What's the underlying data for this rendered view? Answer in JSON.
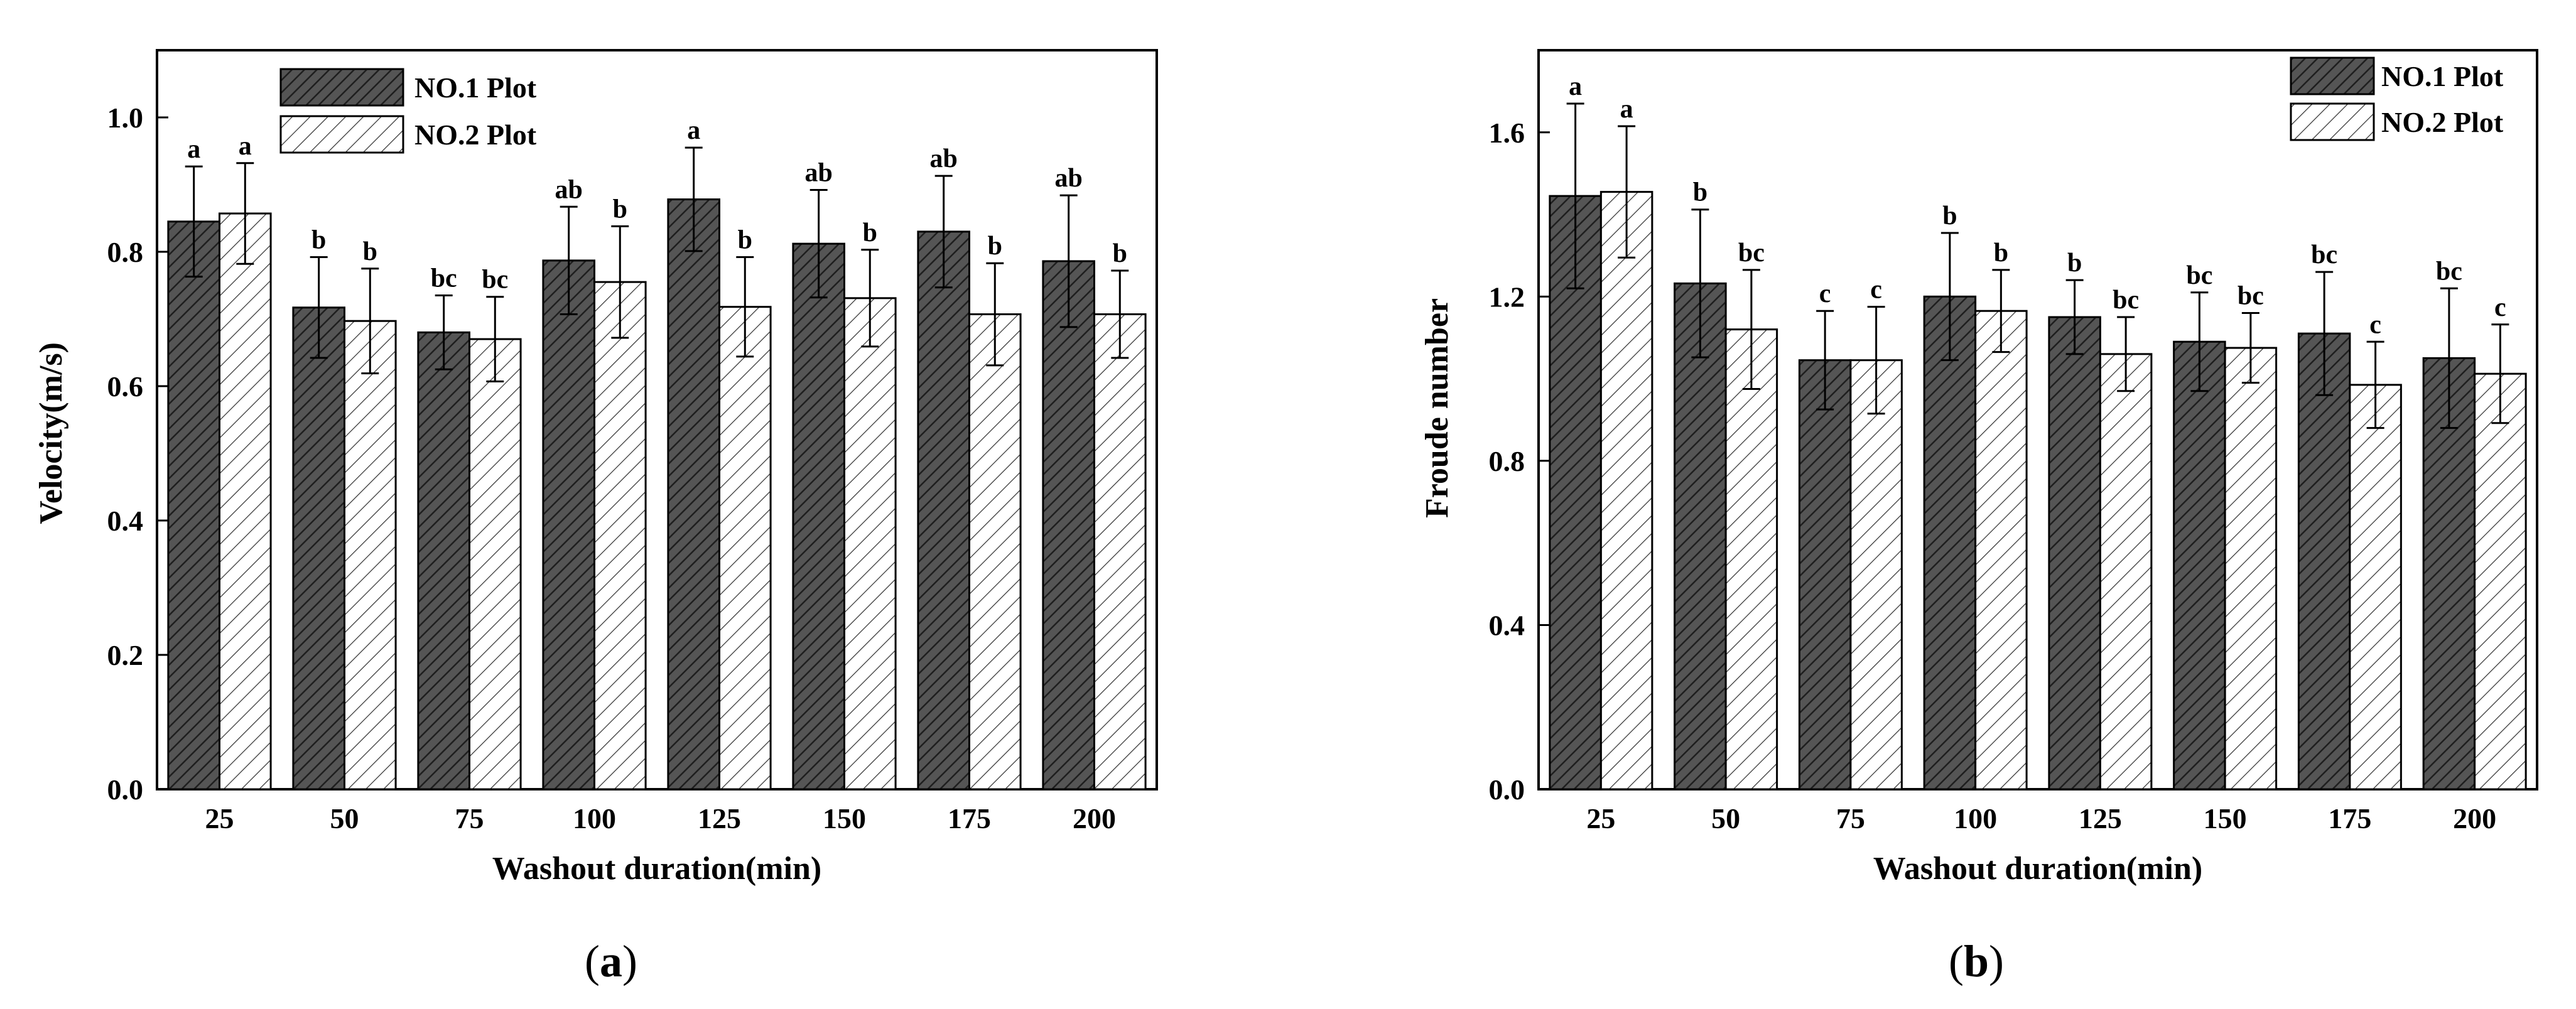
{
  "colors": {
    "plot1_fill": "#555555",
    "plot2_fill": "#ffffff",
    "axis": "#000000"
  },
  "chart_data": [
    {
      "type": "bar",
      "panel_label": "(a)",
      "panel_letter": "a",
      "xlabel": "Washout duration(min)",
      "ylabel": "Velocity(m/s)",
      "ylim": [
        0,
        1.1
      ],
      "yticks": [
        0.0,
        0.2,
        0.4,
        0.6,
        0.8,
        1.0
      ],
      "ytick_labels": [
        "0.0",
        "0.2",
        "0.4",
        "0.6",
        "0.8",
        "1.0"
      ],
      "categories": [
        "25",
        "50",
        "75",
        "100",
        "125",
        "150",
        "175",
        "200"
      ],
      "legend_position": "top-center",
      "series": [
        {
          "name": "NO.1 Plot",
          "pattern": "dark-hatched",
          "values": [
            0.845,
            0.717,
            0.68,
            0.787,
            0.878,
            0.812,
            0.83,
            0.786
          ],
          "errors": [
            0.082,
            0.075,
            0.055,
            0.08,
            0.077,
            0.08,
            0.083,
            0.098
          ],
          "letters": [
            "a",
            "b",
            "bc",
            "ab",
            "a",
            "ab",
            "ab",
            "ab"
          ]
        },
        {
          "name": "NO.2 Plot",
          "pattern": "light-hatched",
          "values": [
            0.857,
            0.697,
            0.67,
            0.755,
            0.718,
            0.731,
            0.707,
            0.707
          ],
          "errors": [
            0.075,
            0.078,
            0.063,
            0.083,
            0.074,
            0.072,
            0.076,
            0.065
          ],
          "letters": [
            "a",
            "b",
            "bc",
            "b",
            "b",
            "b",
            "b",
            "b"
          ]
        }
      ]
    },
    {
      "type": "bar",
      "panel_label": "(b)",
      "panel_letter": "b",
      "xlabel": "Washout duration(min)",
      "ylabel": "Froude number",
      "ylim": [
        0,
        1.8
      ],
      "yticks": [
        0.0,
        0.4,
        0.8,
        1.2,
        1.6
      ],
      "ytick_labels": [
        "0.0",
        "0.4",
        "0.8",
        "1.2",
        "1.6"
      ],
      "categories": [
        "25",
        "50",
        "75",
        "100",
        "125",
        "150",
        "175",
        "200"
      ],
      "legend_position": "top-right",
      "series": [
        {
          "name": "NO.1 Plot",
          "pattern": "dark-hatched",
          "values": [
            1.445,
            1.232,
            1.045,
            1.2,
            1.15,
            1.09,
            1.11,
            1.05
          ],
          "errors": [
            0.225,
            0.18,
            0.12,
            0.155,
            0.09,
            0.12,
            0.15,
            0.17
          ],
          "letters": [
            "a",
            "b",
            "c",
            "b",
            "b",
            "bc",
            "bc",
            "bc"
          ]
        },
        {
          "name": "NO.2 Plot",
          "pattern": "light-hatched",
          "values": [
            1.455,
            1.12,
            1.045,
            1.165,
            1.06,
            1.075,
            0.985,
            1.012
          ],
          "errors": [
            0.16,
            0.145,
            0.13,
            0.1,
            0.09,
            0.085,
            0.105,
            0.12
          ],
          "letters": [
            "a",
            "bc",
            "c",
            "b",
            "bc",
            "bc",
            "c",
            "c"
          ]
        }
      ]
    }
  ]
}
